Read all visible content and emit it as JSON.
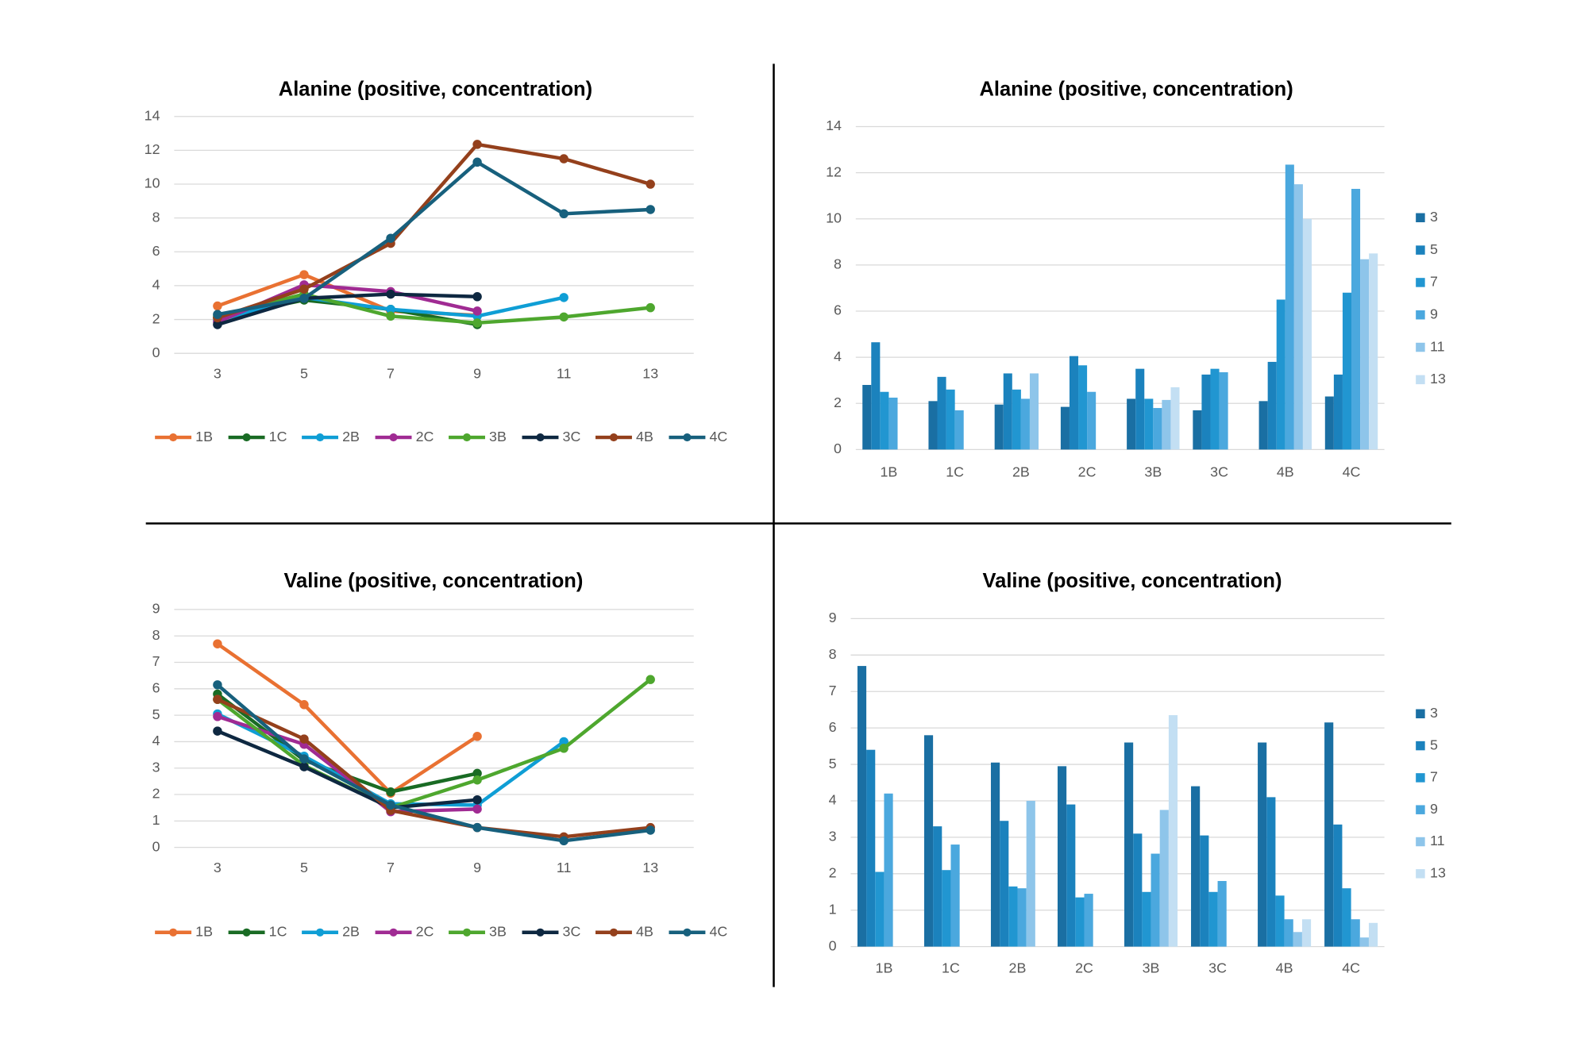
{
  "chart_data": [
    {
      "type": "line",
      "title": "Alanine (positive, concentration)",
      "categories": [
        "3",
        "5",
        "7",
        "9",
        "11",
        "13"
      ],
      "ylim": [
        0,
        14
      ],
      "yticks": [
        0,
        2,
        4,
        6,
        8,
        10,
        12,
        14
      ],
      "grid": true,
      "legend": "bottom",
      "series": [
        {
          "name": "1B",
          "color": "#e97132",
          "values": [
            2.8,
            4.65,
            2.5,
            2.25,
            null,
            null
          ]
        },
        {
          "name": "1C",
          "color": "#196b24",
          "values": [
            2.1,
            3.15,
            2.6,
            1.7,
            null,
            null
          ]
        },
        {
          "name": "2B",
          "color": "#0f9ed5",
          "values": [
            1.95,
            3.3,
            2.6,
            2.2,
            3.3,
            null
          ]
        },
        {
          "name": "2C",
          "color": "#a02b93",
          "values": [
            1.85,
            4.05,
            3.65,
            2.5,
            null,
            null
          ]
        },
        {
          "name": "3B",
          "color": "#4ea72e",
          "values": [
            2.2,
            3.5,
            2.2,
            1.8,
            2.15,
            2.7
          ]
        },
        {
          "name": "3C",
          "color": "#0e2841",
          "values": [
            1.7,
            3.25,
            3.5,
            3.35,
            null,
            null
          ]
        },
        {
          "name": "4B",
          "color": "#94401c",
          "values": [
            2.1,
            3.8,
            6.5,
            12.35,
            11.5,
            10.0
          ]
        },
        {
          "name": "4C",
          "color": "#17607d",
          "values": [
            2.3,
            3.25,
            6.8,
            11.3,
            8.25,
            8.5
          ]
        }
      ]
    },
    {
      "type": "bar",
      "title": "Alanine (positive, concentration)",
      "categories": [
        "1B",
        "1C",
        "2B",
        "2C",
        "3B",
        "3C",
        "4B",
        "4C"
      ],
      "ylim": [
        0,
        14
      ],
      "yticks": [
        0,
        2,
        4,
        6,
        8,
        10,
        12,
        14
      ],
      "grid": true,
      "legend": "right",
      "series": [
        {
          "name": "3",
          "color": "#1a6fa3",
          "values": [
            2.8,
            2.1,
            1.95,
            1.85,
            2.2,
            1.7,
            2.1,
            2.3
          ]
        },
        {
          "name": "5",
          "color": "#1b82bd",
          "values": [
            4.65,
            3.15,
            3.3,
            4.05,
            3.5,
            3.25,
            3.8,
            3.25
          ]
        },
        {
          "name": "7",
          "color": "#2196d1",
          "values": [
            2.5,
            2.6,
            2.6,
            3.65,
            2.2,
            3.5,
            6.5,
            6.8
          ]
        },
        {
          "name": "9",
          "color": "#4ba8de",
          "values": [
            2.25,
            1.7,
            2.2,
            2.5,
            1.8,
            3.35,
            12.35,
            11.3
          ]
        },
        {
          "name": "11",
          "color": "#8ec5ea",
          "values": [
            null,
            null,
            3.3,
            null,
            2.15,
            null,
            11.5,
            8.25
          ]
        },
        {
          "name": "13",
          "color": "#c3dff3",
          "values": [
            null,
            null,
            null,
            null,
            2.7,
            null,
            10.0,
            8.5
          ]
        }
      ]
    },
    {
      "type": "line",
      "title": "Valine (positive, concentration)",
      "categories": [
        "3",
        "5",
        "7",
        "9",
        "11",
        "13"
      ],
      "ylim": [
        0,
        9
      ],
      "yticks": [
        0,
        1,
        2,
        3,
        4,
        5,
        6,
        7,
        8,
        9
      ],
      "grid": true,
      "legend": "bottom",
      "series": [
        {
          "name": "1B",
          "color": "#e97132",
          "values": [
            7.7,
            5.4,
            2.05,
            4.2,
            null,
            null
          ]
        },
        {
          "name": "1C",
          "color": "#196b24",
          "values": [
            5.8,
            3.3,
            2.1,
            2.8,
            null,
            null
          ]
        },
        {
          "name": "2B",
          "color": "#0f9ed5",
          "values": [
            5.05,
            3.45,
            1.65,
            1.6,
            4.0,
            null
          ]
        },
        {
          "name": "2C",
          "color": "#a02b93",
          "values": [
            4.95,
            3.9,
            1.35,
            1.45,
            null,
            null
          ]
        },
        {
          "name": "3B",
          "color": "#4ea72e",
          "values": [
            5.6,
            3.1,
            1.5,
            2.55,
            3.75,
            6.35
          ]
        },
        {
          "name": "3C",
          "color": "#0e2841",
          "values": [
            4.4,
            3.05,
            1.5,
            1.8,
            null,
            null
          ]
        },
        {
          "name": "4B",
          "color": "#94401c",
          "values": [
            5.6,
            4.1,
            1.4,
            0.75,
            0.4,
            0.75
          ]
        },
        {
          "name": "4C",
          "color": "#17607d",
          "values": [
            6.15,
            3.35,
            1.6,
            0.75,
            0.25,
            0.65
          ]
        }
      ]
    },
    {
      "type": "bar",
      "title": "Valine (positive, concentration)",
      "categories": [
        "1B",
        "1C",
        "2B",
        "2C",
        "3B",
        "3C",
        "4B",
        "4C"
      ],
      "ylim": [
        0,
        9
      ],
      "yticks": [
        0,
        1,
        2,
        3,
        4,
        5,
        6,
        7,
        8,
        9
      ],
      "grid": true,
      "legend": "right",
      "series": [
        {
          "name": "3",
          "color": "#1a6fa3",
          "values": [
            7.7,
            5.8,
            5.05,
            4.95,
            5.6,
            4.4,
            5.6,
            6.15
          ]
        },
        {
          "name": "5",
          "color": "#1b82bd",
          "values": [
            5.4,
            3.3,
            3.45,
            3.9,
            3.1,
            3.05,
            4.1,
            3.35
          ]
        },
        {
          "name": "7",
          "color": "#2196d1",
          "values": [
            2.05,
            2.1,
            1.65,
            1.35,
            1.5,
            1.5,
            1.4,
            1.6
          ]
        },
        {
          "name": "9",
          "color": "#4ba8de",
          "values": [
            4.2,
            2.8,
            1.6,
            1.45,
            2.55,
            1.8,
            0.75,
            0.75
          ]
        },
        {
          "name": "11",
          "color": "#8ec5ea",
          "values": [
            null,
            null,
            4.0,
            null,
            3.75,
            null,
            0.4,
            0.25
          ]
        },
        {
          "name": "13",
          "color": "#c3dff3",
          "values": [
            null,
            null,
            null,
            null,
            6.35,
            null,
            0.75,
            0.65
          ]
        }
      ]
    }
  ]
}
